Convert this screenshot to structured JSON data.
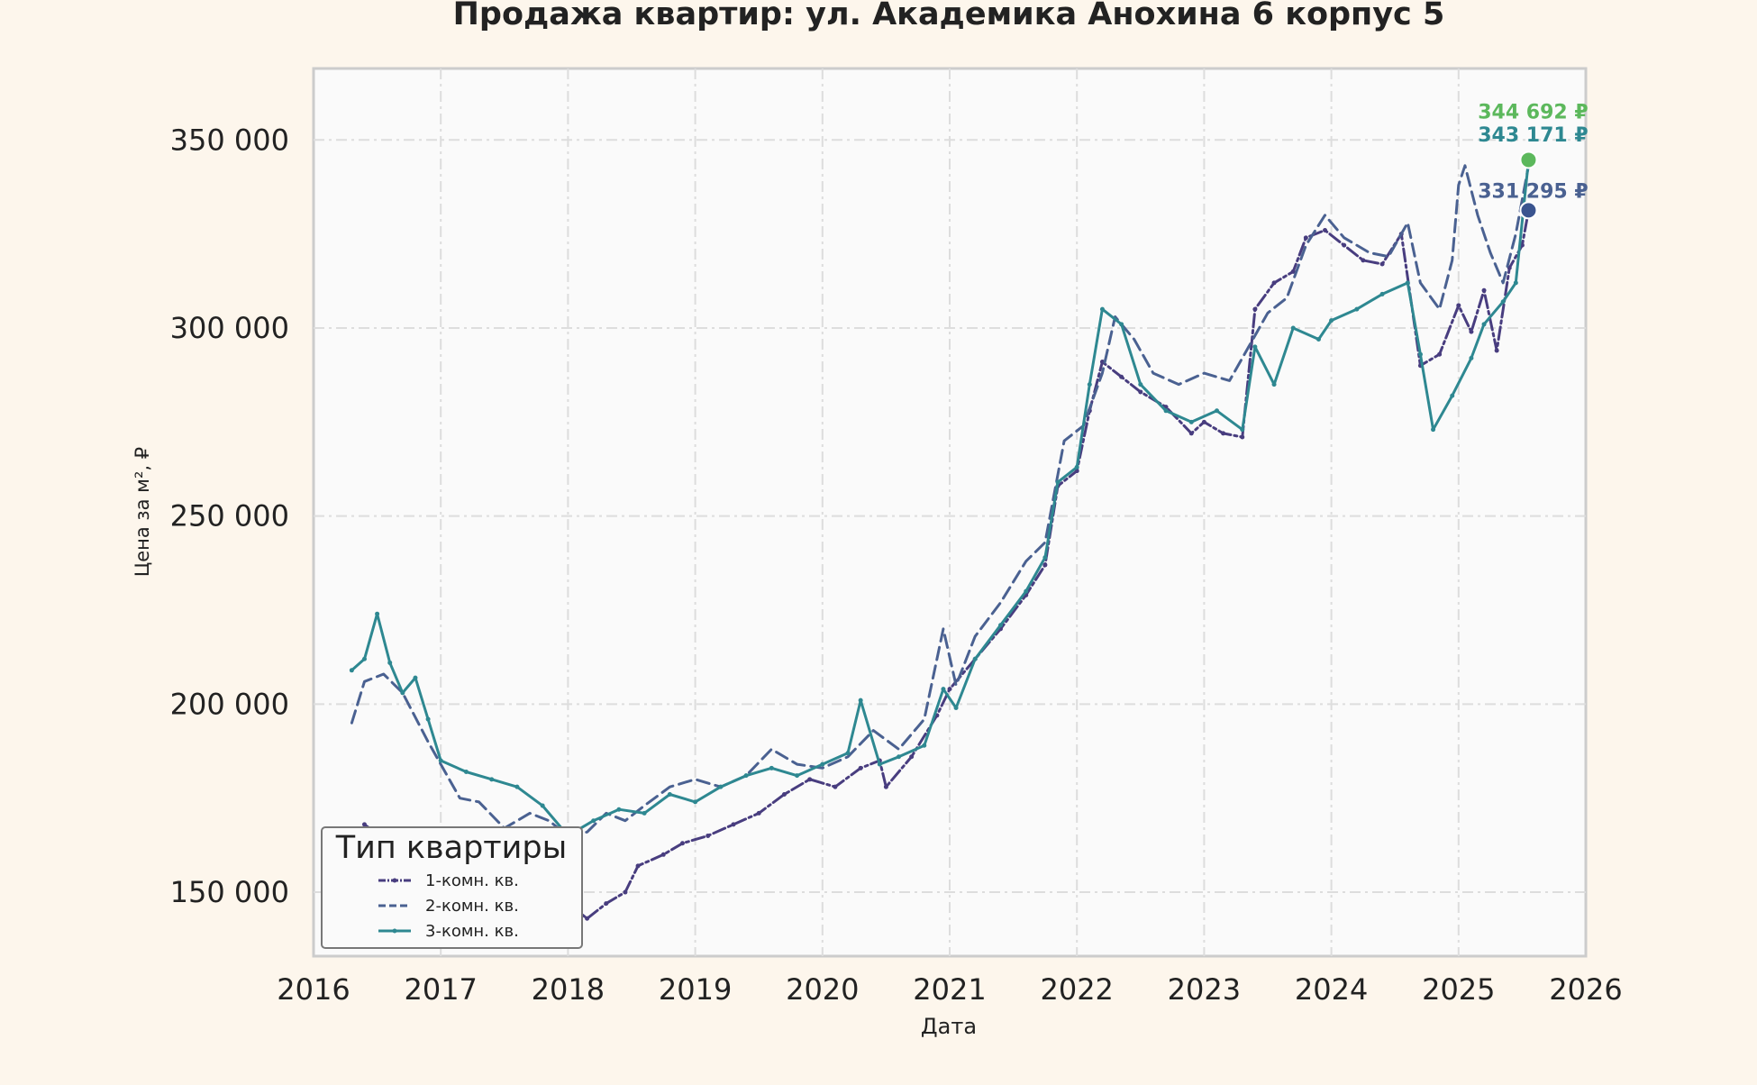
{
  "chart_data": {
    "type": "line",
    "title": "Продажа квартир: ул. Академика Анохина 6 корпус 5",
    "xlabel": "Дата",
    "ylabel": "Цена за м², ₽",
    "xlim": [
      2016.0,
      2026.0
    ],
    "ylim": [
      133000,
      369000
    ],
    "x_ticks": [
      2016,
      2017,
      2018,
      2019,
      2020,
      2021,
      2022,
      2023,
      2024,
      2025,
      2026
    ],
    "x_tick_labels": [
      "2016",
      "2017",
      "2018",
      "2019",
      "2020",
      "2021",
      "2022",
      "2023",
      "2024",
      "2025",
      "2026"
    ],
    "y_ticks": [
      150000,
      200000,
      250000,
      300000,
      350000
    ],
    "y_tick_labels": [
      "150 000",
      "200 000",
      "250 000",
      "300 000",
      "350 000"
    ],
    "grid": true,
    "legend": {
      "title": "Тип квартиры",
      "placement": "bottom-left",
      "entries": [
        "1-комн. кв.",
        "2-комн. кв.",
        "3-комн. кв."
      ]
    },
    "series": [
      {
        "name": "1-комн. кв.",
        "color": "#483d7f",
        "line_style": "dash-dot with markers",
        "points": [
          [
            2016.4,
            168000
          ],
          [
            2016.6,
            163000
          ],
          [
            2016.9,
            158000
          ],
          [
            2017.2,
            156000
          ],
          [
            2017.5,
            155000
          ],
          [
            2017.8,
            152000
          ],
          [
            2018.0,
            147000
          ],
          [
            2018.15,
            143000
          ],
          [
            2018.3,
            147000
          ],
          [
            2018.45,
            150000
          ],
          [
            2018.55,
            157000
          ],
          [
            2018.75,
            160000
          ],
          [
            2018.9,
            163000
          ],
          [
            2019.1,
            165000
          ],
          [
            2019.3,
            168000
          ],
          [
            2019.5,
            171000
          ],
          [
            2019.7,
            176000
          ],
          [
            2019.9,
            180000
          ],
          [
            2020.1,
            178000
          ],
          [
            2020.3,
            183000
          ],
          [
            2020.45,
            185000
          ],
          [
            2020.5,
            178000
          ],
          [
            2020.7,
            186000
          ],
          [
            2020.9,
            197000
          ],
          [
            2021.0,
            204000
          ],
          [
            2021.2,
            212000
          ],
          [
            2021.4,
            220000
          ],
          [
            2021.6,
            229000
          ],
          [
            2021.75,
            237000
          ],
          [
            2021.85,
            258000
          ],
          [
            2022.0,
            262000
          ],
          [
            2022.1,
            278000
          ],
          [
            2022.2,
            291000
          ],
          [
            2022.35,
            287000
          ],
          [
            2022.5,
            283000
          ],
          [
            2022.7,
            279000
          ],
          [
            2022.9,
            272000
          ],
          [
            2023.0,
            275000
          ],
          [
            2023.15,
            272000
          ],
          [
            2023.3,
            271000
          ],
          [
            2023.4,
            305000
          ],
          [
            2023.55,
            312000
          ],
          [
            2023.7,
            315000
          ],
          [
            2023.8,
            324000
          ],
          [
            2023.95,
            326000
          ],
          [
            2024.1,
            322000
          ],
          [
            2024.25,
            318000
          ],
          [
            2024.4,
            317000
          ],
          [
            2024.55,
            325000
          ],
          [
            2024.7,
            290000
          ],
          [
            2024.85,
            293000
          ],
          [
            2025.0,
            306000
          ],
          [
            2025.1,
            299000
          ],
          [
            2025.2,
            310000
          ],
          [
            2025.3,
            294000
          ],
          [
            2025.4,
            316000
          ],
          [
            2025.5,
            322000
          ],
          [
            2025.55,
            331295
          ]
        ]
      },
      {
        "name": "2-комн. кв.",
        "color": "#4a6191",
        "line_style": "dashed",
        "points": [
          [
            2016.3,
            195000
          ],
          [
            2016.4,
            206000
          ],
          [
            2016.55,
            208000
          ],
          [
            2016.7,
            203000
          ],
          [
            2016.9,
            190000
          ],
          [
            2017.0,
            184000
          ],
          [
            2017.15,
            175000
          ],
          [
            2017.3,
            174000
          ],
          [
            2017.5,
            167000
          ],
          [
            2017.7,
            171000
          ],
          [
            2017.85,
            169000
          ],
          [
            2018.0,
            165000
          ],
          [
            2018.15,
            166000
          ],
          [
            2018.3,
            171000
          ],
          [
            2018.45,
            169000
          ],
          [
            2018.6,
            173000
          ],
          [
            2018.8,
            178000
          ],
          [
            2019.0,
            180000
          ],
          [
            2019.2,
            178000
          ],
          [
            2019.4,
            181000
          ],
          [
            2019.6,
            188000
          ],
          [
            2019.8,
            184000
          ],
          [
            2020.0,
            183000
          ],
          [
            2020.2,
            186000
          ],
          [
            2020.4,
            193000
          ],
          [
            2020.6,
            188000
          ],
          [
            2020.8,
            196000
          ],
          [
            2020.95,
            220000
          ],
          [
            2021.05,
            205000
          ],
          [
            2021.2,
            218000
          ],
          [
            2021.4,
            227000
          ],
          [
            2021.6,
            238000
          ],
          [
            2021.75,
            243000
          ],
          [
            2021.9,
            270000
          ],
          [
            2022.05,
            274000
          ],
          [
            2022.2,
            288000
          ],
          [
            2022.3,
            303000
          ],
          [
            2022.45,
            297000
          ],
          [
            2022.6,
            288000
          ],
          [
            2022.8,
            285000
          ],
          [
            2023.0,
            288000
          ],
          [
            2023.2,
            286000
          ],
          [
            2023.35,
            295000
          ],
          [
            2023.5,
            304000
          ],
          [
            2023.65,
            308000
          ],
          [
            2023.8,
            322000
          ],
          [
            2023.95,
            330000
          ],
          [
            2024.1,
            324000
          ],
          [
            2024.3,
            320000
          ],
          [
            2024.45,
            319000
          ],
          [
            2024.6,
            328000
          ],
          [
            2024.7,
            312000
          ],
          [
            2024.85,
            305000
          ],
          [
            2024.95,
            318000
          ],
          [
            2025.0,
            338000
          ],
          [
            2025.05,
            343171
          ],
          [
            2025.15,
            330000
          ],
          [
            2025.25,
            320000
          ],
          [
            2025.35,
            312000
          ],
          [
            2025.45,
            325000
          ],
          [
            2025.55,
            343171
          ]
        ]
      },
      {
        "name": "3-комн. кв.",
        "color": "#2e8891",
        "line_style": "solid with markers",
        "points": [
          [
            2016.3,
            209000
          ],
          [
            2016.4,
            212000
          ],
          [
            2016.5,
            224000
          ],
          [
            2016.6,
            211000
          ],
          [
            2016.7,
            203000
          ],
          [
            2016.8,
            207000
          ],
          [
            2016.9,
            196000
          ],
          [
            2017.0,
            185000
          ],
          [
            2017.2,
            182000
          ],
          [
            2017.4,
            180000
          ],
          [
            2017.6,
            178000
          ],
          [
            2017.8,
            173000
          ],
          [
            2018.0,
            165000
          ],
          [
            2018.2,
            169000
          ],
          [
            2018.4,
            172000
          ],
          [
            2018.6,
            171000
          ],
          [
            2018.8,
            176000
          ],
          [
            2019.0,
            174000
          ],
          [
            2019.2,
            178000
          ],
          [
            2019.4,
            181000
          ],
          [
            2019.6,
            183000
          ],
          [
            2019.8,
            181000
          ],
          [
            2020.0,
            184000
          ],
          [
            2020.2,
            187000
          ],
          [
            2020.3,
            201000
          ],
          [
            2020.45,
            184000
          ],
          [
            2020.6,
            186000
          ],
          [
            2020.8,
            189000
          ],
          [
            2020.95,
            204000
          ],
          [
            2021.05,
            199000
          ],
          [
            2021.2,
            212000
          ],
          [
            2021.4,
            221000
          ],
          [
            2021.6,
            230000
          ],
          [
            2021.75,
            239000
          ],
          [
            2021.85,
            259000
          ],
          [
            2022.0,
            263000
          ],
          [
            2022.1,
            285000
          ],
          [
            2022.2,
            305000
          ],
          [
            2022.35,
            301000
          ],
          [
            2022.5,
            285000
          ],
          [
            2022.7,
            278000
          ],
          [
            2022.9,
            275000
          ],
          [
            2023.1,
            278000
          ],
          [
            2023.3,
            273000
          ],
          [
            2023.4,
            295000
          ],
          [
            2023.55,
            285000
          ],
          [
            2023.7,
            300000
          ],
          [
            2023.9,
            297000
          ],
          [
            2024.0,
            302000
          ],
          [
            2024.2,
            305000
          ],
          [
            2024.4,
            309000
          ],
          [
            2024.6,
            312000
          ],
          [
            2024.7,
            293000
          ],
          [
            2024.8,
            273000
          ],
          [
            2024.95,
            282000
          ],
          [
            2025.1,
            292000
          ],
          [
            2025.2,
            301000
          ],
          [
            2025.35,
            307000
          ],
          [
            2025.45,
            312000
          ],
          [
            2025.55,
            344692
          ]
        ]
      }
    ],
    "annotations": [
      {
        "text": "344 692 ₽",
        "color": "#5cb85c",
        "x": 2025.55,
        "y": 344692
      },
      {
        "text": "343 171 ₽",
        "color": "#2e8891",
        "x": 2025.55,
        "y": 343171
      },
      {
        "text": "331 295 ₽",
        "color": "#4a6191",
        "x": 2025.55,
        "y": 331295
      }
    ],
    "end_markers": [
      {
        "color": "#5cb85c",
        "x": 2025.55,
        "y": 344692
      },
      {
        "color": "#3a548f",
        "x": 2025.55,
        "y": 331295
      }
    ]
  }
}
